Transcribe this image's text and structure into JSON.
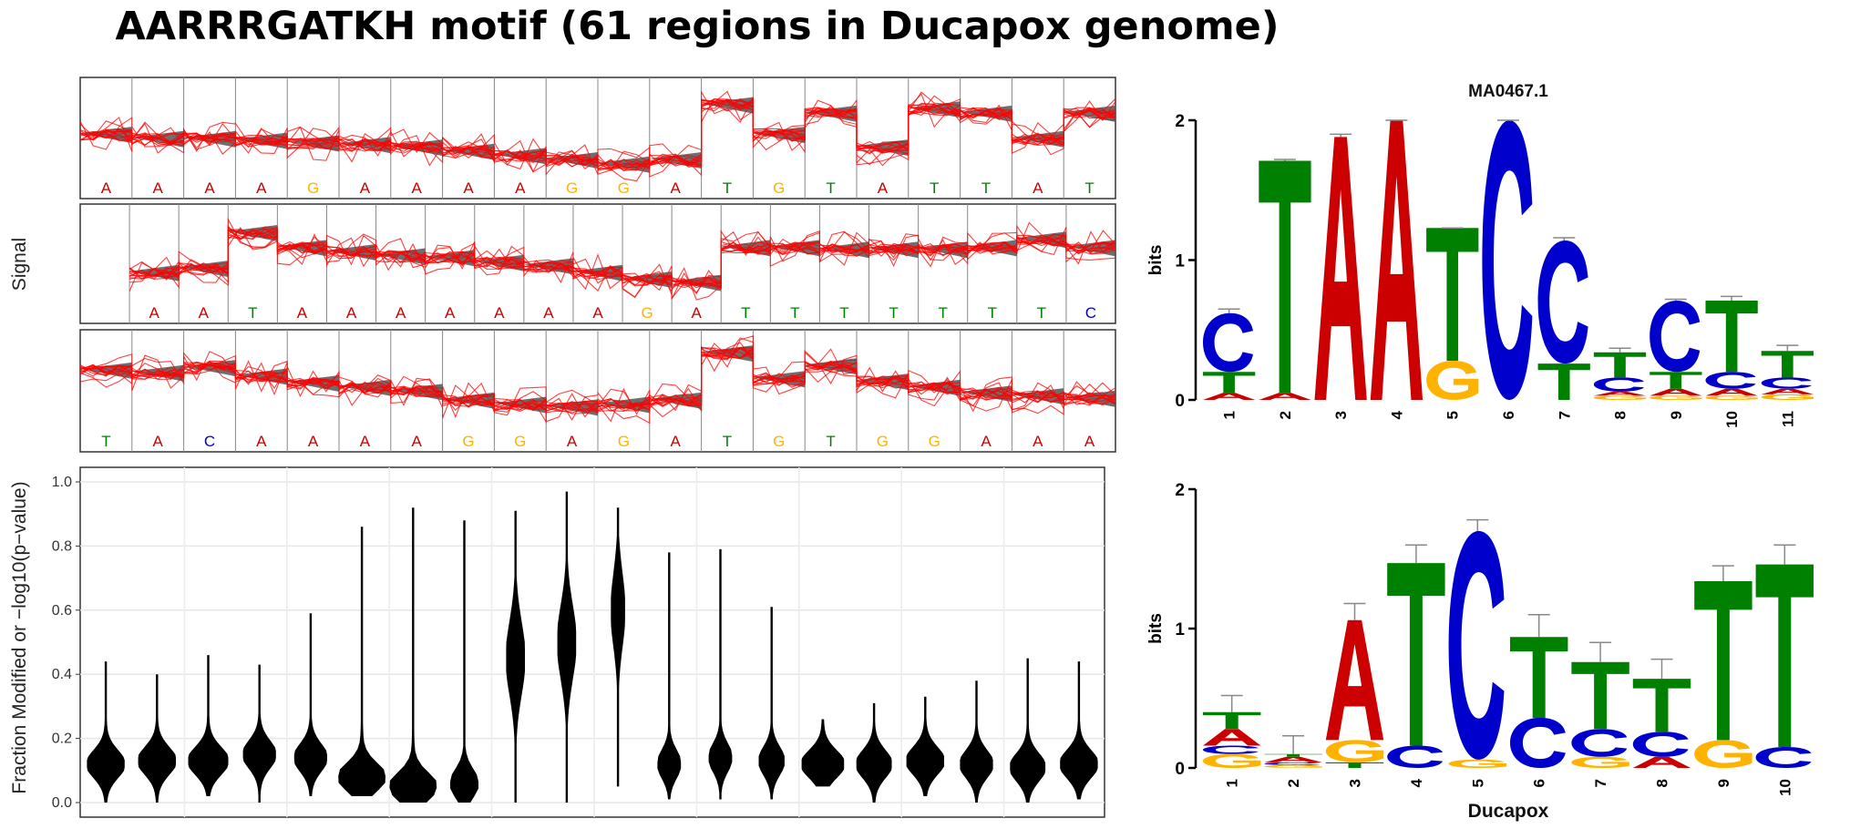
{
  "title": "AARRRGATKH motif (61 regions in Ducapox genome)",
  "colors": {
    "A": "#cc0000",
    "C": "#0000cc",
    "G": "#ffb300",
    "T": "#008000",
    "trace": "#ff0000",
    "model": "#555555",
    "violin": "#000000",
    "error": "#888888"
  },
  "chart_data": [
    {
      "type": "line",
      "description_label": "signal-traces",
      "ylabel": "Signal",
      "tracks": [
        {
          "bases": [
            "A",
            "A",
            "A",
            "A",
            "G",
            "A",
            "A",
            "A",
            "A",
            "G",
            "G",
            "A",
            "T",
            "G",
            "T",
            "A",
            "T",
            "T",
            "A",
            "T"
          ],
          "level": [
            0.45,
            0.4,
            0.4,
            0.38,
            0.35,
            0.33,
            0.3,
            0.25,
            0.2,
            0.15,
            0.1,
            0.15,
            0.8,
            0.45,
            0.7,
            0.3,
            0.75,
            0.7,
            0.4,
            0.7
          ]
        },
        {
          "bases": [
            "",
            "A",
            "A",
            "T",
            "A",
            "A",
            "A",
            "A",
            "A",
            "A",
            "A",
            "G",
            "A",
            "T",
            "T",
            "T",
            "T",
            "T",
            "T",
            "T",
            "C"
          ],
          "level": [
            null,
            0.3,
            0.35,
            0.78,
            0.6,
            0.55,
            0.5,
            0.48,
            0.42,
            0.38,
            0.3,
            0.22,
            0.18,
            0.6,
            0.6,
            0.58,
            0.58,
            0.58,
            0.6,
            0.7,
            0.6
          ]
        },
        {
          "bases": [
            "T",
            "A",
            "C",
            "A",
            "A",
            "A",
            "A",
            "G",
            "G",
            "A",
            "G",
            "A",
            "T",
            "G",
            "T",
            "G",
            "G",
            "A",
            "A",
            "A"
          ],
          "level": [
            0.65,
            0.62,
            0.68,
            0.58,
            0.5,
            0.45,
            0.4,
            0.3,
            0.25,
            0.22,
            0.25,
            0.3,
            0.85,
            0.55,
            0.7,
            0.52,
            0.45,
            0.38,
            0.35,
            0.32
          ]
        }
      ]
    },
    {
      "type": "violin",
      "ylabel": "Fraction Modified or −log10(p−value)",
      "ylim": [
        0,
        1
      ],
      "yticks": [
        "0.0",
        "0.2",
        "0.4",
        "0.6",
        "0.8",
        "1.0"
      ],
      "grid": true,
      "violins": [
        {
          "min": 0.0,
          "max": 0.44,
          "median": 0.12,
          "width": 0.8
        },
        {
          "min": 0.0,
          "max": 0.4,
          "median": 0.13,
          "width": 0.8
        },
        {
          "min": 0.02,
          "max": 0.46,
          "median": 0.13,
          "width": 0.85
        },
        {
          "min": 0.0,
          "max": 0.43,
          "median": 0.15,
          "width": 0.7
        },
        {
          "min": 0.02,
          "max": 0.59,
          "median": 0.14,
          "width": 0.7
        },
        {
          "min": 0.02,
          "max": 0.86,
          "median": 0.08,
          "width": 1.0
        },
        {
          "min": 0.0,
          "max": 0.92,
          "median": 0.05,
          "width": 1.0
        },
        {
          "min": 0.0,
          "max": 0.88,
          "median": 0.06,
          "width": 0.6
        },
        {
          "min": 0.0,
          "max": 0.91,
          "median": 0.45,
          "width": 0.4
        },
        {
          "min": 0.0,
          "max": 0.97,
          "median": 0.5,
          "width": 0.4
        },
        {
          "min": 0.05,
          "max": 0.92,
          "median": 0.6,
          "width": 0.3
        },
        {
          "min": 0.01,
          "max": 0.78,
          "median": 0.12,
          "width": 0.5
        },
        {
          "min": 0.01,
          "max": 0.79,
          "median": 0.14,
          "width": 0.5
        },
        {
          "min": 0.01,
          "max": 0.61,
          "median": 0.13,
          "width": 0.55
        },
        {
          "min": 0.05,
          "max": 0.26,
          "median": 0.12,
          "width": 0.9
        },
        {
          "min": 0.0,
          "max": 0.31,
          "median": 0.12,
          "width": 0.75
        },
        {
          "min": 0.02,
          "max": 0.33,
          "median": 0.13,
          "width": 0.8
        },
        {
          "min": 0.0,
          "max": 0.38,
          "median": 0.12,
          "width": 0.7
        },
        {
          "min": 0.0,
          "max": 0.45,
          "median": 0.11,
          "width": 0.75
        },
        {
          "min": 0.01,
          "max": 0.44,
          "median": 0.12,
          "width": 0.8
        }
      ]
    },
    {
      "type": "sequence-logo",
      "title": "MA0467.1",
      "ylabel": "bits",
      "yticks": [
        "0",
        "1",
        "2"
      ],
      "ylim": [
        0,
        2
      ],
      "positions": [
        "1",
        "2",
        "3",
        "4",
        "5",
        "6",
        "7",
        "8",
        "9",
        "10",
        "11"
      ],
      "columns": [
        {
          "stack": [
            [
              "A",
              0.05
            ],
            [
              "T",
              0.15
            ],
            [
              "C",
              0.42
            ]
          ],
          "err": 0.65
        },
        {
          "stack": [
            [
              "A",
              0.05
            ],
            [
              "T",
              1.66
            ]
          ],
          "err": 1.72
        },
        {
          "stack": [
            [
              "A",
              1.88
            ]
          ],
          "err": 1.9
        },
        {
          "stack": [
            [
              "A",
              2.0
            ]
          ],
          "err": 2.0
        },
        {
          "stack": [
            [
              "G",
              0.28
            ],
            [
              "T",
              0.95
            ]
          ],
          "err": 1.23
        },
        {
          "stack": [
            [
              "C",
              2.0
            ]
          ],
          "err": 2.0
        },
        {
          "stack": [
            [
              "T",
              0.26
            ],
            [
              "C",
              0.88
            ]
          ],
          "err": 1.16
        },
        {
          "stack": [
            [
              "G",
              0.03
            ],
            [
              "A",
              0.03
            ],
            [
              "C",
              0.1
            ],
            [
              "T",
              0.18
            ]
          ],
          "err": 0.37
        },
        {
          "stack": [
            [
              "G",
              0.03
            ],
            [
              "A",
              0.05
            ],
            [
              "T",
              0.12
            ],
            [
              "C",
              0.51
            ]
          ],
          "err": 0.72
        },
        {
          "stack": [
            [
              "G",
              0.03
            ],
            [
              "A",
              0.05
            ],
            [
              "C",
              0.12
            ],
            [
              "T",
              0.51
            ]
          ],
          "err": 0.74
        },
        {
          "stack": [
            [
              "G",
              0.04
            ],
            [
              "A",
              0.04
            ],
            [
              "C",
              0.08
            ],
            [
              "T",
              0.19
            ]
          ],
          "err": 0.39
        }
      ]
    },
    {
      "type": "sequence-logo",
      "xlabel": "Ducapox",
      "ylabel": "bits",
      "yticks": [
        "0",
        "1",
        "2"
      ],
      "ylim": [
        0,
        2
      ],
      "positions": [
        "1",
        "2",
        "3",
        "4",
        "5",
        "6",
        "7",
        "8",
        "9",
        "10"
      ],
      "columns": [
        {
          "stack": [
            [
              "G",
              0.1
            ],
            [
              "C",
              0.06
            ],
            [
              "A",
              0.12
            ],
            [
              "T",
              0.12
            ]
          ],
          "err": 0.52
        },
        {
          "stack": [
            [
              "G",
              0.02
            ],
            [
              "C",
              0.02
            ],
            [
              "A",
              0.04
            ],
            [
              "T",
              0.02
            ]
          ],
          "err": 0.23
        },
        {
          "stack": [
            [
              "T",
              0.04
            ],
            [
              "G",
              0.16
            ],
            [
              "A",
              0.86
            ]
          ],
          "err": 1.18
        },
        {
          "stack": [
            [
              "C",
              0.16
            ],
            [
              "T",
              1.31
            ]
          ],
          "err": 1.6
        },
        {
          "stack": [
            [
              "G",
              0.06
            ],
            [
              "C",
              1.64
            ]
          ],
          "err": 1.78
        },
        {
          "stack": [
            [
              "C",
              0.36
            ],
            [
              "T",
              0.58
            ]
          ],
          "err": 1.1
        },
        {
          "stack": [
            [
              "G",
              0.08
            ],
            [
              "C",
              0.2
            ],
            [
              "T",
              0.48
            ]
          ],
          "err": 0.9
        },
        {
          "stack": [
            [
              "A",
              0.08
            ],
            [
              "C",
              0.18
            ],
            [
              "T",
              0.38
            ]
          ],
          "err": 0.78
        },
        {
          "stack": [
            [
              "G",
              0.2
            ],
            [
              "T",
              1.14
            ]
          ],
          "err": 1.45
        },
        {
          "stack": [
            [
              "C",
              0.15
            ],
            [
              "T",
              1.31
            ]
          ],
          "err": 1.6
        }
      ]
    }
  ]
}
